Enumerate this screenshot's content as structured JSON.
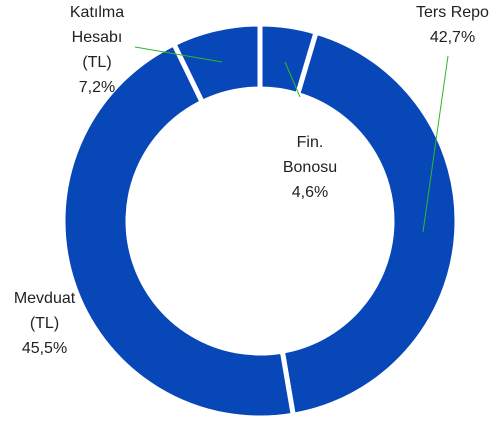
{
  "chart_data": {
    "type": "donut",
    "categories": [
      "Fin. Bonosu",
      "Ters Repo",
      "Mevduat (TL)",
      "Katılma Hesabı (TL)"
    ],
    "values": [
      4.6,
      42.7,
      45.5,
      7.2
    ],
    "value_labels": [
      "4,6%",
      "42,7%",
      "45,5%",
      "7,2%"
    ],
    "color": "#0847b8"
  }
}
